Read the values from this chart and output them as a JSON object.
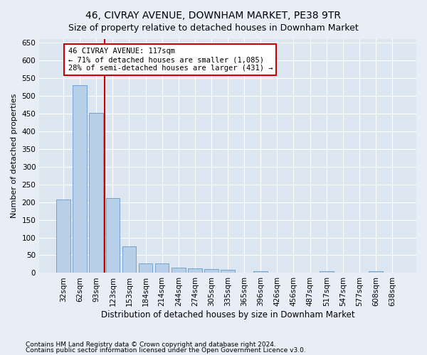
{
  "title1": "46, CIVRAY AVENUE, DOWNHAM MARKET, PE38 9TR",
  "title2": "Size of property relative to detached houses in Downham Market",
  "xlabel": "Distribution of detached houses by size in Downham Market",
  "ylabel": "Number of detached properties",
  "categories": [
    "32sqm",
    "62sqm",
    "93sqm",
    "123sqm",
    "153sqm",
    "184sqm",
    "214sqm",
    "244sqm",
    "274sqm",
    "305sqm",
    "335sqm",
    "365sqm",
    "396sqm",
    "426sqm",
    "456sqm",
    "487sqm",
    "517sqm",
    "547sqm",
    "577sqm",
    "608sqm",
    "638sqm"
  ],
  "values": [
    208,
    530,
    451,
    211,
    76,
    27,
    26,
    15,
    12,
    10,
    8,
    0,
    5,
    0,
    0,
    0,
    4,
    0,
    0,
    4,
    0
  ],
  "bar_color": "#b8cfe8",
  "bar_edge_color": "#6699cc",
  "vline_x_index": 2.5,
  "vline_color": "#cc0000",
  "annotation_line1": "46 CIVRAY AVENUE: 117sqm",
  "annotation_line2": "← 71% of detached houses are smaller (1,085)",
  "annotation_line3": "28% of semi-detached houses are larger (431) →",
  "annotation_box_color": "#ffffff",
  "annotation_box_edge": "#cc0000",
  "footer1": "Contains HM Land Registry data © Crown copyright and database right 2024.",
  "footer2": "Contains public sector information licensed under the Open Government Licence v3.0.",
  "bg_color": "#e8eef5",
  "plot_bg_color": "#dce6f0",
  "ylim": [
    0,
    660
  ],
  "yticks": [
    0,
    50,
    100,
    150,
    200,
    250,
    300,
    350,
    400,
    450,
    500,
    550,
    600,
    650
  ],
  "title1_fontsize": 10,
  "title2_fontsize": 9,
  "xlabel_fontsize": 8.5,
  "ylabel_fontsize": 8,
  "tick_fontsize": 7.5,
  "annotation_fontsize": 7.5
}
